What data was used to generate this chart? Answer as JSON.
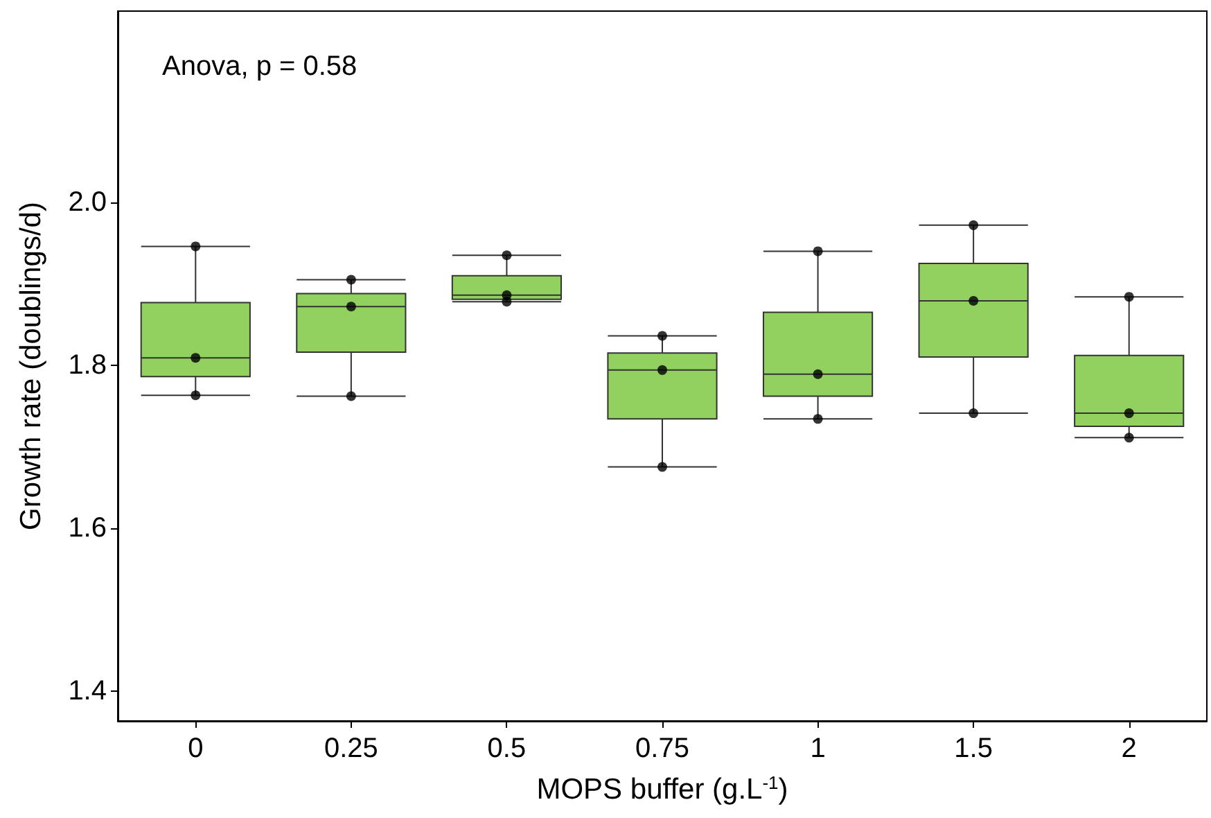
{
  "chart_data": {
    "type": "box",
    "xlabel": "MOPS buffer (g.L$^{-1}$)",
    "ylabel": "Growth rate (doublings/d)",
    "annotations": [
      "Anova, p = 0.58"
    ],
    "categories": [
      "0",
      "0.25",
      "0.5",
      "0.75",
      "1",
      "1.5",
      "2"
    ],
    "color": "#92d060",
    "boxes": [
      {
        "low": 1.763,
        "q1": 1.786,
        "median": 1.809,
        "q3": 1.877,
        "high": 1.946
      },
      {
        "low": 1.762,
        "q1": 1.816,
        "median": 1.872,
        "q3": 1.888,
        "high": 1.905
      },
      {
        "low": 1.878,
        "q1": 1.881,
        "median": 1.886,
        "q3": 1.91,
        "high": 1.935
      },
      {
        "low": 1.675,
        "q1": 1.734,
        "median": 1.794,
        "q3": 1.815,
        "high": 1.836
      },
      {
        "low": 1.734,
        "q1": 1.762,
        "median": 1.789,
        "q3": 1.865,
        "high": 1.94
      },
      {
        "low": 1.741,
        "q1": 1.81,
        "median": 1.879,
        "q3": 1.925,
        "high": 1.972
      },
      {
        "low": 1.711,
        "q1": 1.725,
        "median": 1.741,
        "q3": 1.812,
        "high": 1.884
      }
    ],
    "series": [
      {
        "type": "scatter",
        "color": "#000000",
        "marker": "circle",
        "x": [
          "0",
          "0",
          "0",
          "0.25",
          "0.25",
          "0.25",
          "0.5",
          "0.5",
          "0.5",
          "0.75",
          "0.75",
          "0.75",
          "1",
          "1",
          "1",
          "1.5",
          "1.5",
          "1.5",
          "2",
          "2",
          "2"
        ],
        "values": [
          1.946,
          1.809,
          1.763,
          1.905,
          1.872,
          1.762,
          1.935,
          1.886,
          1.878,
          1.836,
          1.794,
          1.675,
          1.94,
          1.789,
          1.734,
          1.972,
          1.879,
          1.741,
          1.884,
          1.741,
          1.711
        ]
      }
    ],
    "ylim": [
      1.363,
      2.235
    ],
    "yticks": [
      1.4,
      1.6,
      1.8,
      {
        "value": 2,
        "label": "2.0"
      }
    ],
    "grid": false
  }
}
